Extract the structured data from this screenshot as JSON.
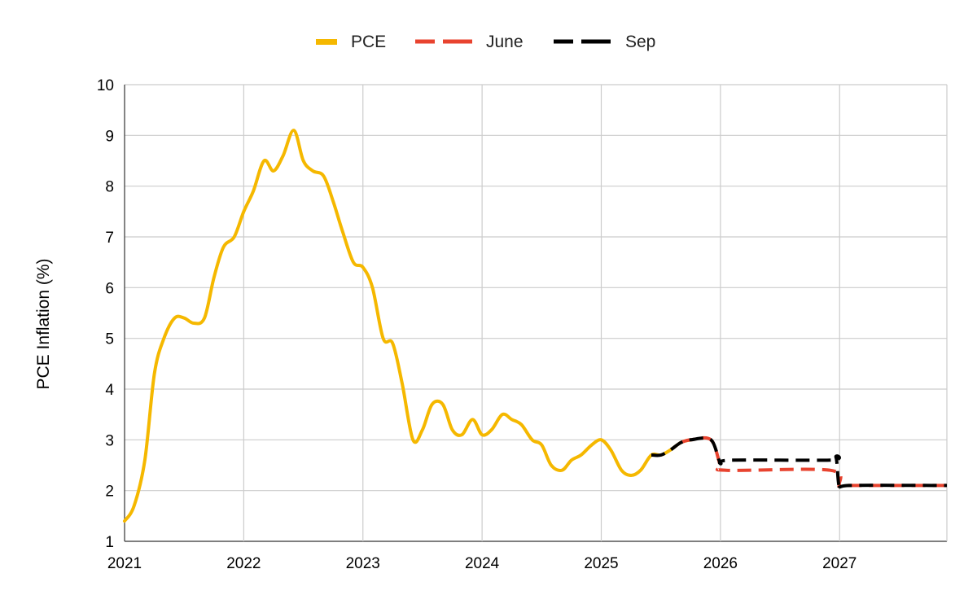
{
  "chart_data": {
    "type": "line",
    "title": "",
    "xlabel": "",
    "ylabel": "PCE Inflation (%)",
    "ylim": [
      1,
      10
    ],
    "xlim": [
      2021,
      2027.9
    ],
    "yticks": [
      "1",
      "2",
      "3",
      "4",
      "5",
      "6",
      "7",
      "8",
      "9",
      "10"
    ],
    "xticks": [
      "2021",
      "2022",
      "2023",
      "2024",
      "2025",
      "2026",
      "2027"
    ],
    "grid": true,
    "legend_position": "top-center",
    "series": [
      {
        "name": "PCE",
        "color": "#F5B800",
        "style": "solid",
        "points": [
          [
            2021.0,
            1.4
          ],
          [
            2021.08,
            1.7
          ],
          [
            2021.17,
            2.6
          ],
          [
            2021.25,
            4.3
          ],
          [
            2021.33,
            5.0
          ],
          [
            2021.42,
            5.4
          ],
          [
            2021.5,
            5.4
          ],
          [
            2021.58,
            5.3
          ],
          [
            2021.67,
            5.4
          ],
          [
            2021.75,
            6.2
          ],
          [
            2021.83,
            6.8
          ],
          [
            2021.92,
            7.0
          ],
          [
            2022.0,
            7.5
          ],
          [
            2022.08,
            7.9
          ],
          [
            2022.17,
            8.5
          ],
          [
            2022.25,
            8.3
          ],
          [
            2022.33,
            8.6
          ],
          [
            2022.42,
            9.1
          ],
          [
            2022.5,
            8.5
          ],
          [
            2022.58,
            8.3
          ],
          [
            2022.67,
            8.2
          ],
          [
            2022.75,
            7.7
          ],
          [
            2022.83,
            7.1
          ],
          [
            2022.92,
            6.5
          ],
          [
            2023.0,
            6.4
          ],
          [
            2023.08,
            6.0
          ],
          [
            2023.17,
            5.0
          ],
          [
            2023.25,
            4.9
          ],
          [
            2023.33,
            4.1
          ],
          [
            2023.42,
            3.0
          ],
          [
            2023.5,
            3.2
          ],
          [
            2023.58,
            3.7
          ],
          [
            2023.67,
            3.7
          ],
          [
            2023.75,
            3.2
          ],
          [
            2023.83,
            3.1
          ],
          [
            2023.92,
            3.4
          ],
          [
            2024.0,
            3.1
          ],
          [
            2024.08,
            3.2
          ],
          [
            2024.17,
            3.5
          ],
          [
            2024.25,
            3.4
          ],
          [
            2024.33,
            3.3
          ],
          [
            2024.42,
            3.0
          ],
          [
            2024.5,
            2.9
          ],
          [
            2024.58,
            2.5
          ],
          [
            2024.67,
            2.4
          ],
          [
            2024.75,
            2.6
          ],
          [
            2024.83,
            2.7
          ],
          [
            2024.92,
            2.9
          ],
          [
            2025.0,
            3.0
          ],
          [
            2025.08,
            2.8
          ],
          [
            2025.17,
            2.4
          ],
          [
            2025.25,
            2.3
          ],
          [
            2025.33,
            2.4
          ],
          [
            2025.42,
            2.7
          ],
          [
            2025.5,
            2.7
          ],
          [
            2025.58,
            2.8
          ],
          [
            2025.67,
            2.95
          ],
          [
            2025.75,
            3.0
          ]
        ]
      },
      {
        "name": "June",
        "color": "#E8432F",
        "style": "dashed",
        "points": [
          [
            2025.67,
            2.95
          ],
          [
            2025.75,
            3.0
          ],
          [
            2025.92,
            3.0
          ],
          [
            2026.0,
            2.5
          ],
          [
            2026.05,
            2.4
          ],
          [
            2026.92,
            2.4
          ],
          [
            2027.0,
            2.1
          ],
          [
            2027.08,
            2.1
          ],
          [
            2027.9,
            2.1
          ]
        ]
      },
      {
        "name": "Sep",
        "color": "#000000",
        "style": "dashed",
        "points": [
          [
            2025.42,
            2.7
          ],
          [
            2025.5,
            2.7
          ],
          [
            2025.58,
            2.8
          ],
          [
            2025.67,
            2.95
          ],
          [
            2025.75,
            3.0
          ],
          [
            2025.92,
            3.0
          ],
          [
            2026.0,
            2.55
          ],
          [
            2026.08,
            2.6
          ],
          [
            2026.92,
            2.6
          ],
          [
            2026.97,
            2.65
          ],
          [
            2027.0,
            2.05
          ],
          [
            2027.08,
            2.1
          ],
          [
            2027.9,
            2.1
          ]
        ]
      }
    ]
  }
}
